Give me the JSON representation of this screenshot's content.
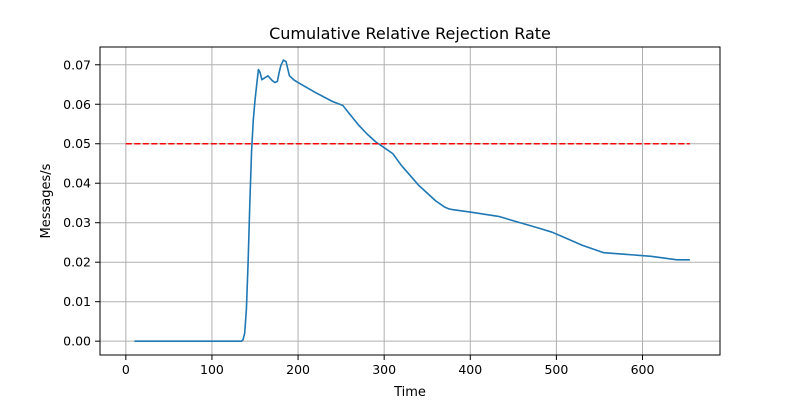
{
  "chart_data": {
    "type": "line",
    "title": "Cumulative Relative Rejection Rate",
    "xlabel": "Time",
    "ylabel": "Messages/s",
    "xlim": [
      -30,
      690
    ],
    "ylim": [
      -0.0035,
      0.0745
    ],
    "xticks": [
      0,
      100,
      200,
      300,
      400,
      500,
      600
    ],
    "yticks": [
      0.0,
      0.01,
      0.02,
      0.03,
      0.04,
      0.05,
      0.06,
      0.07
    ],
    "ytick_labels": [
      "0.00",
      "0.01",
      "0.02",
      "0.03",
      "0.04",
      "0.05",
      "0.06",
      "0.07"
    ],
    "grid": true,
    "series": [
      {
        "color": "#1f77b4",
        "style": "solid",
        "x": [
          10,
          50,
          100,
          134,
          136,
          138,
          140,
          142,
          144,
          146,
          148,
          150,
          152,
          154,
          156,
          158,
          160,
          165,
          170,
          173,
          176,
          178,
          180,
          183,
          186,
          188,
          190,
          195,
          200,
          220,
          240,
          252,
          260,
          270,
          280,
          290,
          300,
          310,
          320,
          330,
          340,
          350,
          360,
          370,
          375,
          380,
          400,
          433,
          450,
          480,
          495,
          510,
          530,
          555,
          580,
          610,
          640,
          655
        ],
        "y": [
          0.0,
          0.0,
          0.0,
          0.0,
          0.0003,
          0.002,
          0.008,
          0.02,
          0.035,
          0.048,
          0.056,
          0.061,
          0.065,
          0.0688,
          0.068,
          0.0662,
          0.0665,
          0.0672,
          0.066,
          0.0655,
          0.0658,
          0.068,
          0.0698,
          0.0712,
          0.0708,
          0.069,
          0.0672,
          0.0662,
          0.0655,
          0.063,
          0.0607,
          0.0597,
          0.0575,
          0.0548,
          0.0525,
          0.0505,
          0.049,
          0.0475,
          0.0445,
          0.042,
          0.0395,
          0.0375,
          0.0355,
          0.034,
          0.0335,
          0.0333,
          0.0327,
          0.0316,
          0.0305,
          0.0286,
          0.0276,
          0.0262,
          0.0243,
          0.0224,
          0.022,
          0.0215,
          0.0206,
          0.0206
        ]
      },
      {
        "color": "#ff0000",
        "style": "dashed",
        "x": [
          0,
          655
        ],
        "y": [
          0.05,
          0.05
        ]
      }
    ]
  }
}
